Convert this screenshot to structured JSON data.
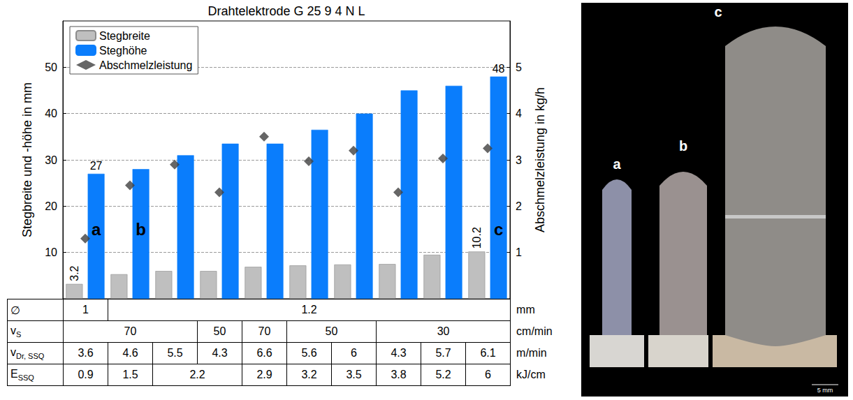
{
  "chart_data": {
    "type": "bar",
    "title": "Drahtelektrode G 25 9 4 N L",
    "categories": [
      null,
      null,
      null,
      null,
      null,
      null,
      null,
      null,
      null,
      null
    ],
    "y_label": "Stegbreite und -höhe in mm",
    "y2_label": "Abschmelzleistung in kg/h",
    "ylim": [
      0,
      60
    ],
    "yticks": [
      10,
      20,
      30,
      40,
      50
    ],
    "y2lim": [
      0,
      6
    ],
    "y2ticks": [
      1,
      2,
      3,
      4,
      5
    ],
    "grid": true,
    "legend": "upper left",
    "series": [
      {
        "name": "Stegbreite",
        "type": "bar",
        "color": "#bfbfbf",
        "values": [
          3.2,
          5.3,
          6.0,
          6.0,
          6.9,
          7.2,
          7.4,
          7.5,
          9.5,
          10.2
        ],
        "data_labels": true,
        "value_labels": [
          "3.2",
          null,
          null,
          null,
          null,
          null,
          null,
          null,
          null,
          "10.2"
        ]
      },
      {
        "name": "Steghöhe",
        "type": "bar",
        "color": "#0a7dfc",
        "values": [
          27,
          28,
          31,
          33.5,
          33.5,
          36.5,
          40,
          45,
          46,
          48
        ],
        "data_labels": true,
        "value_labels": [
          "27",
          null,
          null,
          null,
          null,
          null,
          null,
          null,
          null,
          "48"
        ]
      },
      {
        "name": "Abschmelzleistung",
        "type": "scatter",
        "axis": "y2",
        "marker": "diamond",
        "color": "#404040",
        "values": [
          1.3,
          2.45,
          2.9,
          2.3,
          3.5,
          2.97,
          3.2,
          2.3,
          3.03,
          3.25
        ]
      }
    ],
    "annotations": [
      {
        "text": "a",
        "series": "Steghöhe",
        "index": 0
      },
      {
        "text": "b",
        "series": "Steghöhe",
        "index": 1
      },
      {
        "text": "c",
        "series": "Steghöhe",
        "index": 9
      }
    ]
  },
  "table": {
    "rows": [
      {
        "label": {
          "text": "∅",
          "sub": null
        },
        "unit": "mm",
        "cells": [
          {
            "text": "1",
            "span": 1
          },
          {
            "text": "1.2",
            "span": 9
          }
        ]
      },
      {
        "label": {
          "text": "v",
          "sub": "S"
        },
        "unit": "cm/min",
        "cells": [
          {
            "text": "70",
            "span": 3
          },
          {
            "text": "50",
            "span": 1
          },
          {
            "text": "70",
            "span": 1
          },
          {
            "text": "50",
            "span": 2
          },
          {
            "text": "30",
            "span": 3
          }
        ]
      },
      {
        "label": {
          "text": "v",
          "sub": "Dr, SSQ"
        },
        "unit": "m/min",
        "cells": [
          {
            "text": "3.6",
            "span": 1
          },
          {
            "text": "4.6",
            "span": 1
          },
          {
            "text": "5.5",
            "span": 1
          },
          {
            "text": "4.3",
            "span": 1
          },
          {
            "text": "6.6",
            "span": 1
          },
          {
            "text": "5.6",
            "span": 1
          },
          {
            "text": "6",
            "span": 1
          },
          {
            "text": "4.3",
            "span": 1
          },
          {
            "text": "5.7",
            "span": 1
          },
          {
            "text": "6.1",
            "span": 1
          }
        ]
      },
      {
        "label": {
          "text": "E",
          "sub": "SSQ"
        },
        "unit": "kJ/cm",
        "cells": [
          {
            "text": "0.9",
            "span": 1
          },
          {
            "text": "1.5",
            "span": 1
          },
          {
            "text": "2.2",
            "span": 2
          },
          {
            "text": "2.9",
            "span": 1
          },
          {
            "text": "3.2",
            "span": 1
          },
          {
            "text": "3.5",
            "span": 1
          },
          {
            "text": "3.8",
            "span": 1
          },
          {
            "text": "5.2",
            "span": 1
          },
          {
            "text": "6",
            "span": 1
          }
        ]
      }
    ]
  },
  "photo": {
    "labels": [
      "a",
      "b",
      "c"
    ],
    "scale_bar": "5 mm"
  }
}
